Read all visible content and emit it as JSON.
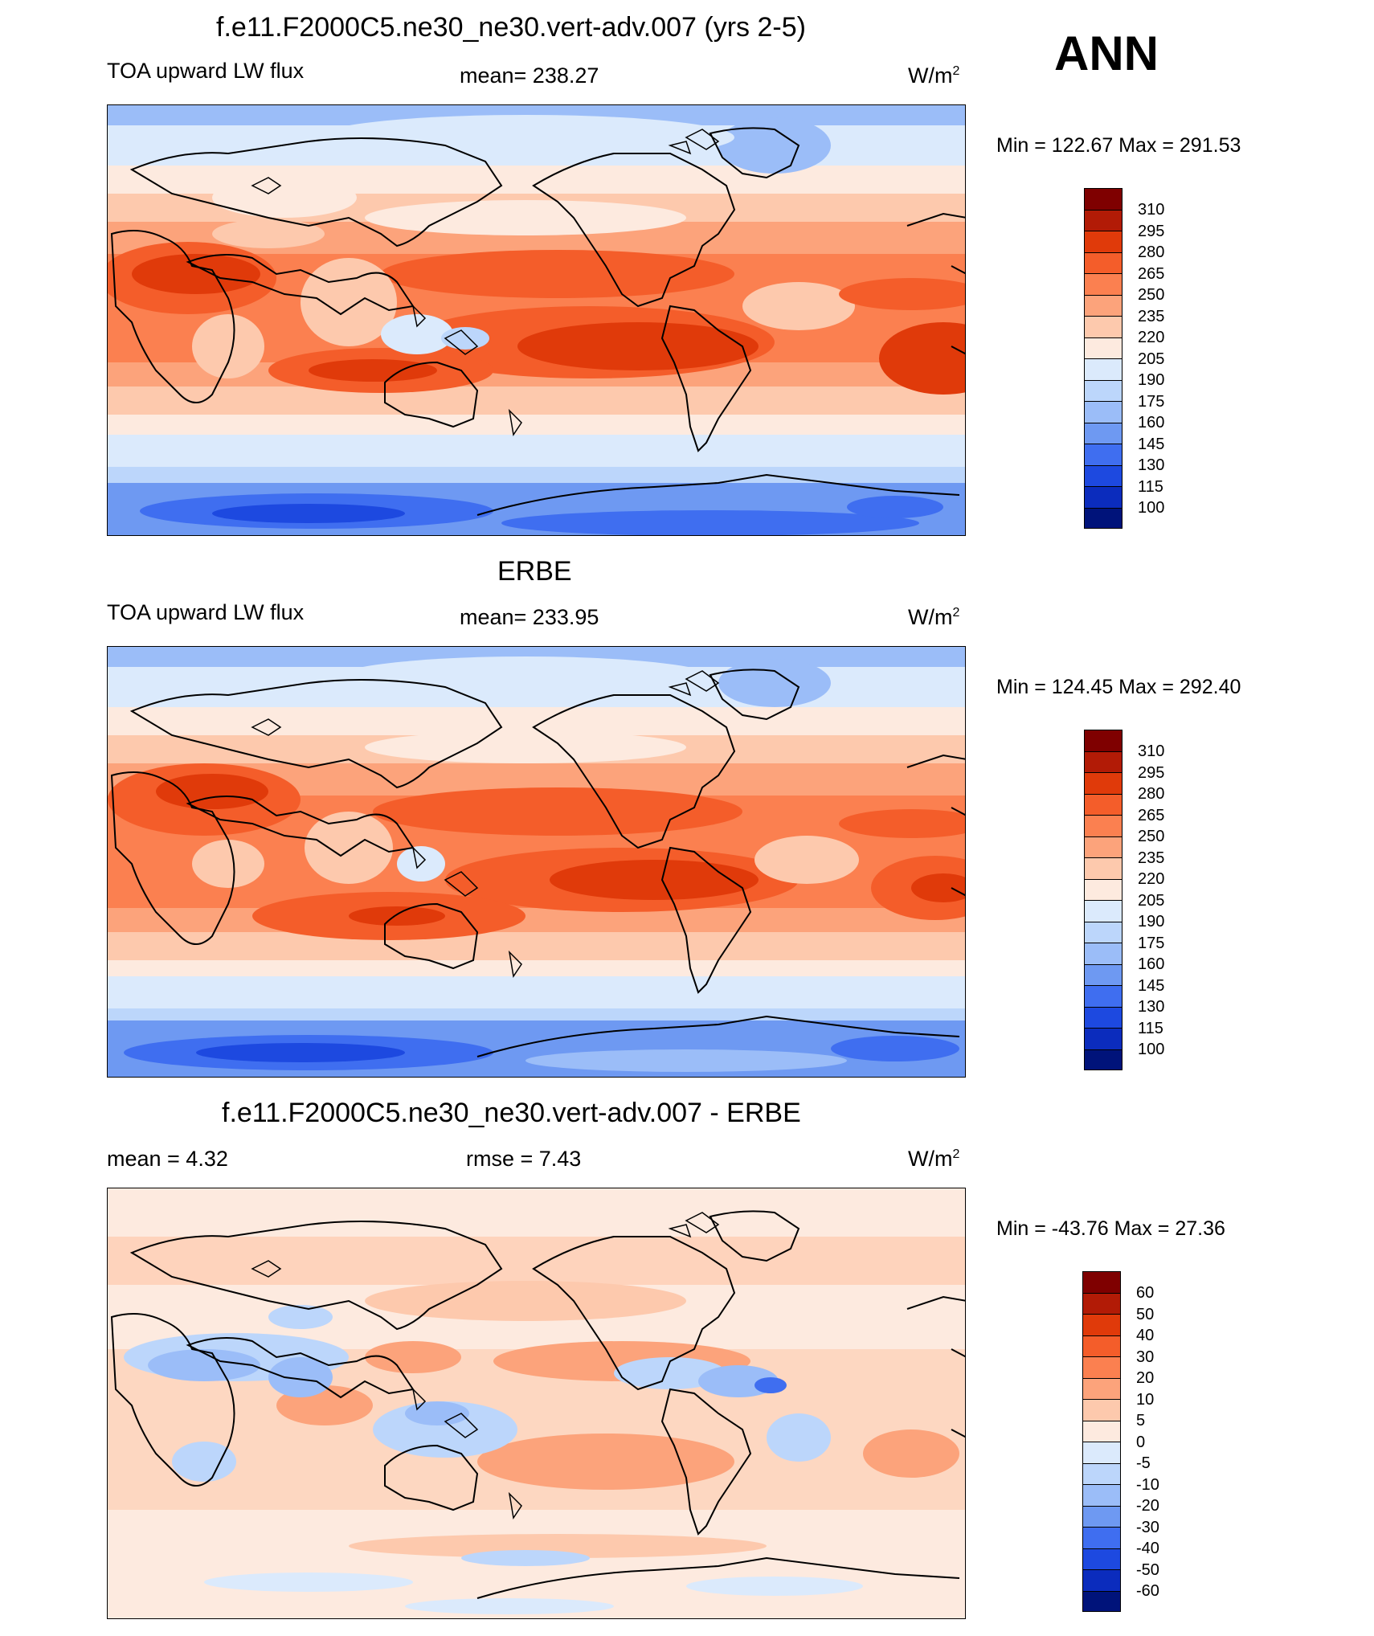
{
  "page": {
    "season": "ANN",
    "units_label": "W/m",
    "units_sup": "2"
  },
  "panels": [
    {
      "id": "model",
      "title": "f.e11.F2000C5.ne30_ne30.vert-adv.007 (yrs 2-5)",
      "left_label": "TOA upward LW flux",
      "center_label": "mean= 238.27",
      "minmax": "Min = 122.67 Max = 291.53",
      "legend_labels": [
        "310",
        "295",
        "280",
        "265",
        "250",
        "235",
        "220",
        "205",
        "190",
        "175",
        "160",
        "145",
        "130",
        "115",
        "100"
      ]
    },
    {
      "id": "obs",
      "title": "ERBE",
      "left_label": "TOA upward LW flux",
      "center_label": "mean= 233.95",
      "minmax": "Min = 124.45 Max = 292.40",
      "legend_labels": [
        "310",
        "295",
        "280",
        "265",
        "250",
        "235",
        "220",
        "205",
        "190",
        "175",
        "160",
        "145",
        "130",
        "115",
        "100"
      ]
    },
    {
      "id": "diff",
      "title": "f.e11.F2000C5.ne30_ne30.vert-adv.007 - ERBE",
      "left_label": "mean =   4.32",
      "center_label": "rmse =   7.43",
      "minmax": "Min = -43.76 Max =  27.36",
      "legend_labels": [
        "60",
        "50",
        "40",
        "30",
        "20",
        "10",
        "5",
        "0",
        "-5",
        "-10",
        "-20",
        "-30",
        "-40",
        "-50",
        "-60"
      ]
    }
  ],
  "colors": {
    "scale16": [
      "#7f0000",
      "#b21b06",
      "#e03a0a",
      "#f45d2a",
      "#fb8050",
      "#fca37b",
      "#fdc9ad",
      "#fdeadf",
      "#dbeafc",
      "#bcd6fb",
      "#9bbdf8",
      "#6e99f2",
      "#3f6ef0",
      "#1d49e0",
      "#0b2cbd",
      "#00137a"
    ]
  }
}
